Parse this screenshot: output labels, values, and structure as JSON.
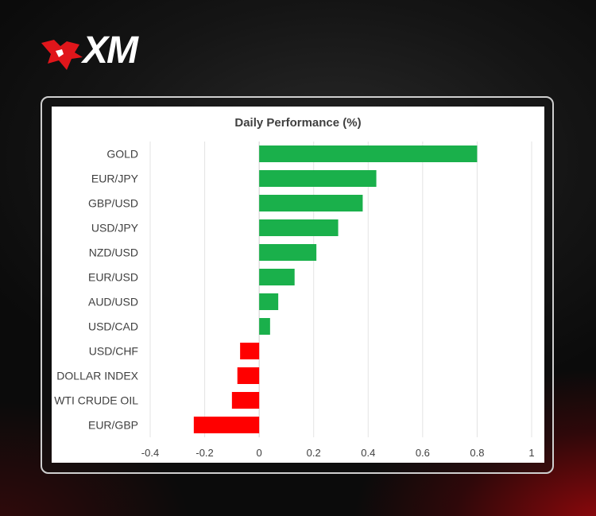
{
  "brand": {
    "logo_text": "XM",
    "logo_color": "#e0161b"
  },
  "chart_data": {
    "type": "bar",
    "orientation": "horizontal",
    "title": "Daily Performance (%)",
    "categories": [
      "GOLD",
      "EUR/JPY",
      "GBP/USD",
      "USD/JPY",
      "NZD/USD",
      "EUR/USD",
      "AUD/USD",
      "USD/CAD",
      "USD/CHF",
      "DOLLAR INDEX",
      "WTI CRUDE OIL",
      "EUR/GBP"
    ],
    "values": [
      0.8,
      0.43,
      0.38,
      0.29,
      0.21,
      0.13,
      0.07,
      0.04,
      -0.07,
      -0.08,
      -0.1,
      -0.24
    ],
    "xlim": [
      -0.4,
      1.0
    ],
    "xticks": [
      "-0.4",
      "-0.2",
      "0",
      "0.2",
      "0.4",
      "0.6",
      "0.8",
      "1"
    ],
    "xtick_values": [
      -0.4,
      -0.2,
      0,
      0.2,
      0.4,
      0.6,
      0.8,
      1.0
    ],
    "grid": "vertical",
    "legend": "none",
    "positive_color": "#1ab04b",
    "negative_color": "#ff0000"
  }
}
